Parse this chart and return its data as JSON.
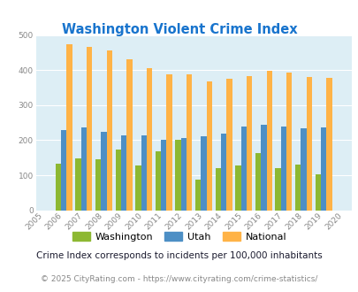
{
  "title": "Washington Violent Crime Index",
  "years": [
    2005,
    2006,
    2007,
    2008,
    2009,
    2010,
    2011,
    2012,
    2013,
    2014,
    2015,
    2016,
    2017,
    2018,
    2019,
    2020
  ],
  "washington": [
    null,
    133,
    148,
    145,
    172,
    127,
    168,
    200,
    87,
    120,
    127,
    163,
    120,
    130,
    103,
    null
  ],
  "utah": [
    null,
    228,
    237,
    224,
    214,
    214,
    200,
    207,
    211,
    218,
    238,
    245,
    240,
    235,
    237,
    null
  ],
  "national": [
    null,
    473,
    467,
    455,
    431,
    405,
    387,
    387,
    367,
    376,
    384,
    397,
    394,
    380,
    379,
    null
  ],
  "washington_color": "#8db832",
  "utah_color": "#4d8fc5",
  "national_color": "#ffb347",
  "background_color": "#ddeef5",
  "ylim": [
    0,
    500
  ],
  "yticks": [
    0,
    100,
    200,
    300,
    400,
    500
  ],
  "bar_width": 0.28,
  "legend_labels": [
    "Washington",
    "Utah",
    "National"
  ],
  "footnote1": "Crime Index corresponds to incidents per 100,000 inhabitants",
  "footnote2": "© 2025 CityRating.com - https://www.cityrating.com/crime-statistics/",
  "title_color": "#1874cd",
  "footnote1_color": "#1a1a2e",
  "footnote2_color": "#888888",
  "tick_color": "#888888",
  "grid_color": "#ffffff"
}
